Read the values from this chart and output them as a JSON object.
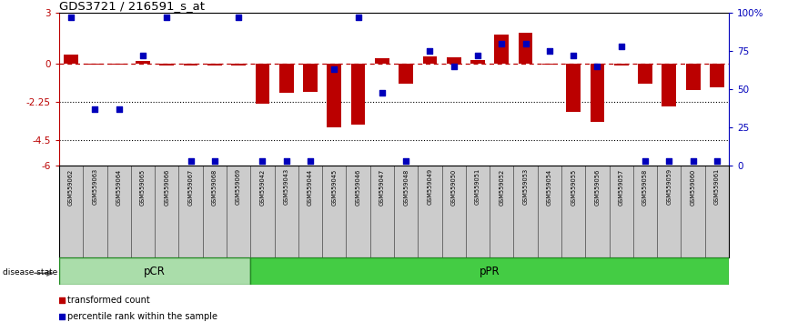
{
  "title": "GDS3721 / 216591_s_at",
  "samples": [
    "GSM559062",
    "GSM559063",
    "GSM559064",
    "GSM559065",
    "GSM559066",
    "GSM559067",
    "GSM559068",
    "GSM559069",
    "GSM559042",
    "GSM559043",
    "GSM559044",
    "GSM559045",
    "GSM559046",
    "GSM559047",
    "GSM559048",
    "GSM559049",
    "GSM559050",
    "GSM559051",
    "GSM559052",
    "GSM559053",
    "GSM559054",
    "GSM559055",
    "GSM559056",
    "GSM559057",
    "GSM559058",
    "GSM559059",
    "GSM559060",
    "GSM559061"
  ],
  "bar_values": [
    0.55,
    -0.05,
    -0.05,
    0.15,
    -0.08,
    -0.08,
    -0.08,
    -0.08,
    -2.35,
    -1.7,
    -1.65,
    -3.75,
    -3.55,
    0.35,
    -1.15,
    0.45,
    0.4,
    0.25,
    1.75,
    1.85,
    -0.05,
    -2.85,
    -3.4,
    -0.08,
    -1.15,
    -2.5,
    -1.55,
    -1.4
  ],
  "blue_dot_values": [
    97,
    37,
    37,
    72,
    97,
    3,
    3,
    97,
    3,
    3,
    3,
    63,
    97,
    48,
    3,
    75,
    65,
    72,
    80,
    80,
    75,
    72,
    65,
    78,
    3,
    3,
    3,
    3
  ],
  "pCR_count": 8,
  "pPR_count": 20,
  "ylim_left": [
    -6,
    3
  ],
  "ylim_right": [
    0,
    100
  ],
  "yticks_left": [
    -6,
    -4.5,
    -2.25,
    0,
    3
  ],
  "ytick_labels_left": [
    "-6",
    "-4.5",
    "-2.25",
    "0",
    "3"
  ],
  "yticks_right": [
    0,
    25,
    50,
    75,
    100
  ],
  "ytick_labels_right": [
    "0",
    "25",
    "50",
    "75",
    "100%"
  ],
  "hlines": [
    -2.25,
    -4.5
  ],
  "bar_color": "#BB0000",
  "dot_color": "#0000BB",
  "pCR_color": "#AADDAA",
  "pPR_color": "#44CC44",
  "background_color": "#FFFFFF",
  "zero_line_color": "#BB0000",
  "legend_items": [
    "transformed count",
    "percentile rank within the sample"
  ]
}
